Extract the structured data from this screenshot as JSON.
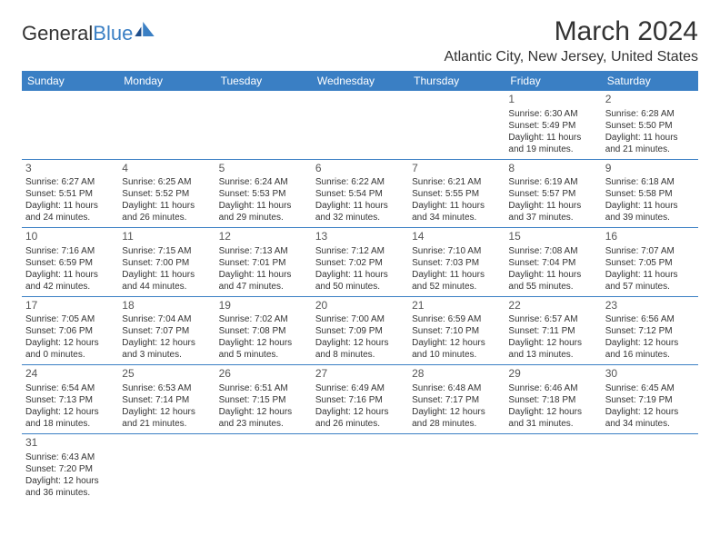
{
  "brand": {
    "part1": "General",
    "part2": "Blue"
  },
  "title": "March 2024",
  "location": "Atlantic City, New Jersey, United States",
  "colors": {
    "primary": "#3a7fc4",
    "text": "#333333",
    "background": "#ffffff"
  },
  "headers": [
    "Sunday",
    "Monday",
    "Tuesday",
    "Wednesday",
    "Thursday",
    "Friday",
    "Saturday"
  ],
  "weeks": [
    [
      null,
      null,
      null,
      null,
      null,
      {
        "n": "1",
        "sr": "Sunrise: 6:30 AM",
        "ss": "Sunset: 5:49 PM",
        "d1": "Daylight: 11 hours",
        "d2": "and 19 minutes."
      },
      {
        "n": "2",
        "sr": "Sunrise: 6:28 AM",
        "ss": "Sunset: 5:50 PM",
        "d1": "Daylight: 11 hours",
        "d2": "and 21 minutes."
      }
    ],
    [
      {
        "n": "3",
        "sr": "Sunrise: 6:27 AM",
        "ss": "Sunset: 5:51 PM",
        "d1": "Daylight: 11 hours",
        "d2": "and 24 minutes."
      },
      {
        "n": "4",
        "sr": "Sunrise: 6:25 AM",
        "ss": "Sunset: 5:52 PM",
        "d1": "Daylight: 11 hours",
        "d2": "and 26 minutes."
      },
      {
        "n": "5",
        "sr": "Sunrise: 6:24 AM",
        "ss": "Sunset: 5:53 PM",
        "d1": "Daylight: 11 hours",
        "d2": "and 29 minutes."
      },
      {
        "n": "6",
        "sr": "Sunrise: 6:22 AM",
        "ss": "Sunset: 5:54 PM",
        "d1": "Daylight: 11 hours",
        "d2": "and 32 minutes."
      },
      {
        "n": "7",
        "sr": "Sunrise: 6:21 AM",
        "ss": "Sunset: 5:55 PM",
        "d1": "Daylight: 11 hours",
        "d2": "and 34 minutes."
      },
      {
        "n": "8",
        "sr": "Sunrise: 6:19 AM",
        "ss": "Sunset: 5:57 PM",
        "d1": "Daylight: 11 hours",
        "d2": "and 37 minutes."
      },
      {
        "n": "9",
        "sr": "Sunrise: 6:18 AM",
        "ss": "Sunset: 5:58 PM",
        "d1": "Daylight: 11 hours",
        "d2": "and 39 minutes."
      }
    ],
    [
      {
        "n": "10",
        "sr": "Sunrise: 7:16 AM",
        "ss": "Sunset: 6:59 PM",
        "d1": "Daylight: 11 hours",
        "d2": "and 42 minutes."
      },
      {
        "n": "11",
        "sr": "Sunrise: 7:15 AM",
        "ss": "Sunset: 7:00 PM",
        "d1": "Daylight: 11 hours",
        "d2": "and 44 minutes."
      },
      {
        "n": "12",
        "sr": "Sunrise: 7:13 AM",
        "ss": "Sunset: 7:01 PM",
        "d1": "Daylight: 11 hours",
        "d2": "and 47 minutes."
      },
      {
        "n": "13",
        "sr": "Sunrise: 7:12 AM",
        "ss": "Sunset: 7:02 PM",
        "d1": "Daylight: 11 hours",
        "d2": "and 50 minutes."
      },
      {
        "n": "14",
        "sr": "Sunrise: 7:10 AM",
        "ss": "Sunset: 7:03 PM",
        "d1": "Daylight: 11 hours",
        "d2": "and 52 minutes."
      },
      {
        "n": "15",
        "sr": "Sunrise: 7:08 AM",
        "ss": "Sunset: 7:04 PM",
        "d1": "Daylight: 11 hours",
        "d2": "and 55 minutes."
      },
      {
        "n": "16",
        "sr": "Sunrise: 7:07 AM",
        "ss": "Sunset: 7:05 PM",
        "d1": "Daylight: 11 hours",
        "d2": "and 57 minutes."
      }
    ],
    [
      {
        "n": "17",
        "sr": "Sunrise: 7:05 AM",
        "ss": "Sunset: 7:06 PM",
        "d1": "Daylight: 12 hours",
        "d2": "and 0 minutes."
      },
      {
        "n": "18",
        "sr": "Sunrise: 7:04 AM",
        "ss": "Sunset: 7:07 PM",
        "d1": "Daylight: 12 hours",
        "d2": "and 3 minutes."
      },
      {
        "n": "19",
        "sr": "Sunrise: 7:02 AM",
        "ss": "Sunset: 7:08 PM",
        "d1": "Daylight: 12 hours",
        "d2": "and 5 minutes."
      },
      {
        "n": "20",
        "sr": "Sunrise: 7:00 AM",
        "ss": "Sunset: 7:09 PM",
        "d1": "Daylight: 12 hours",
        "d2": "and 8 minutes."
      },
      {
        "n": "21",
        "sr": "Sunrise: 6:59 AM",
        "ss": "Sunset: 7:10 PM",
        "d1": "Daylight: 12 hours",
        "d2": "and 10 minutes."
      },
      {
        "n": "22",
        "sr": "Sunrise: 6:57 AM",
        "ss": "Sunset: 7:11 PM",
        "d1": "Daylight: 12 hours",
        "d2": "and 13 minutes."
      },
      {
        "n": "23",
        "sr": "Sunrise: 6:56 AM",
        "ss": "Sunset: 7:12 PM",
        "d1": "Daylight: 12 hours",
        "d2": "and 16 minutes."
      }
    ],
    [
      {
        "n": "24",
        "sr": "Sunrise: 6:54 AM",
        "ss": "Sunset: 7:13 PM",
        "d1": "Daylight: 12 hours",
        "d2": "and 18 minutes."
      },
      {
        "n": "25",
        "sr": "Sunrise: 6:53 AM",
        "ss": "Sunset: 7:14 PM",
        "d1": "Daylight: 12 hours",
        "d2": "and 21 minutes."
      },
      {
        "n": "26",
        "sr": "Sunrise: 6:51 AM",
        "ss": "Sunset: 7:15 PM",
        "d1": "Daylight: 12 hours",
        "d2": "and 23 minutes."
      },
      {
        "n": "27",
        "sr": "Sunrise: 6:49 AM",
        "ss": "Sunset: 7:16 PM",
        "d1": "Daylight: 12 hours",
        "d2": "and 26 minutes."
      },
      {
        "n": "28",
        "sr": "Sunrise: 6:48 AM",
        "ss": "Sunset: 7:17 PM",
        "d1": "Daylight: 12 hours",
        "d2": "and 28 minutes."
      },
      {
        "n": "29",
        "sr": "Sunrise: 6:46 AM",
        "ss": "Sunset: 7:18 PM",
        "d1": "Daylight: 12 hours",
        "d2": "and 31 minutes."
      },
      {
        "n": "30",
        "sr": "Sunrise: 6:45 AM",
        "ss": "Sunset: 7:19 PM",
        "d1": "Daylight: 12 hours",
        "d2": "and 34 minutes."
      }
    ],
    [
      {
        "n": "31",
        "sr": "Sunrise: 6:43 AM",
        "ss": "Sunset: 7:20 PM",
        "d1": "Daylight: 12 hours",
        "d2": "and 36 minutes."
      },
      null,
      null,
      null,
      null,
      null,
      null
    ]
  ]
}
